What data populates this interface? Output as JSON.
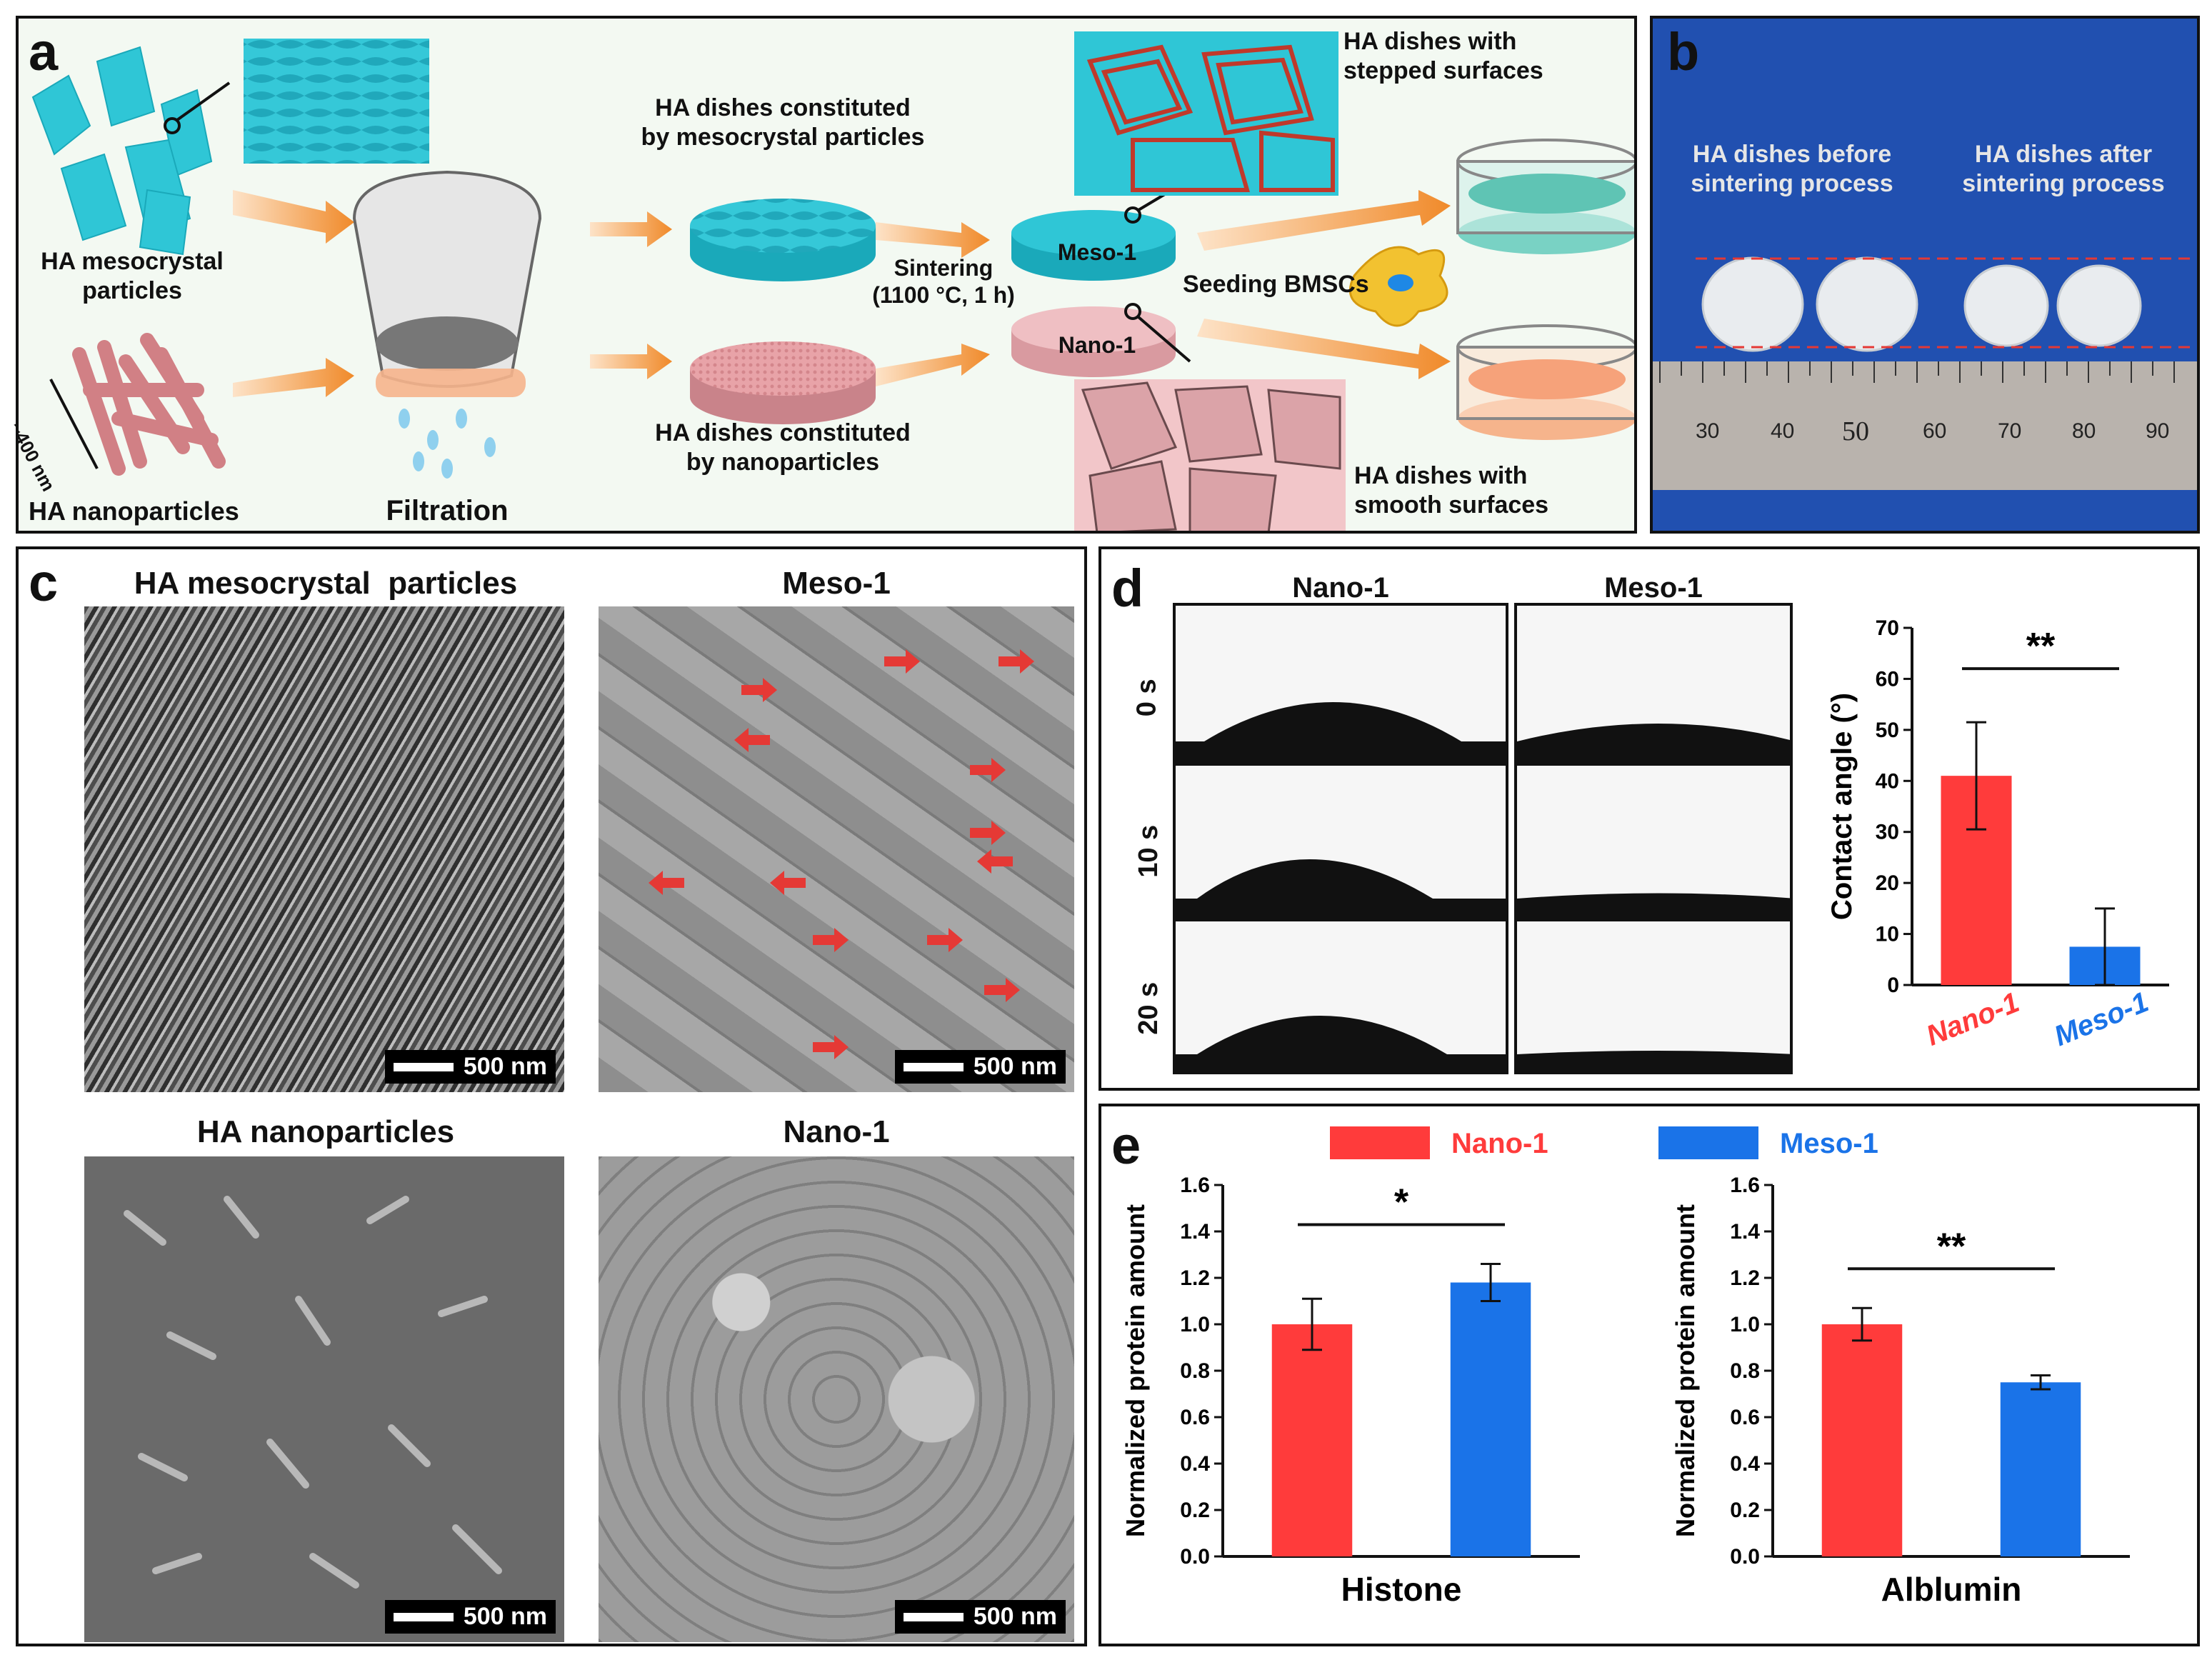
{
  "panel_a": {
    "label": "a",
    "mesocrystal_label": "HA mesocrystal\nparticles",
    "nanoparticle_label": "HA nanoparticles",
    "size_label": "~400 nm",
    "filtration": "Filtration",
    "dish_meso": "HA dishes constituted\nby mesocrystal particles",
    "dish_nano": "HA dishes constituted\nby nanoparticles",
    "sintering": "Sintering\n(1100 °C, 1 h)",
    "meso1": "Meso-1",
    "nano1": "Nano-1",
    "seeding": "Seeding BMSCs",
    "stepped": "HA dishes with\nstepped surfaces",
    "smooth": "HA dishes with\nsmooth surfaces",
    "colors": {
      "meso": "#2fc6d6",
      "nano": "#e8a3a8",
      "arrow": "#f08a2a"
    }
  },
  "panel_b": {
    "label": "b",
    "before": "HA dishes before\nsintering process",
    "after": "HA dishes after\nsintering process",
    "ruler_ticks": [
      "30",
      "40",
      "50",
      "60",
      "70",
      "80",
      "90"
    ]
  },
  "panel_c": {
    "label": "c",
    "titles": [
      "HA mesocrystal  particles",
      "Meso-1",
      "HA nanoparticles",
      "Nano-1"
    ],
    "scale": "500 nm"
  },
  "panel_d": {
    "label": "d",
    "col_nano": "Nano-1",
    "col_meso": "Meso-1",
    "times": [
      "0 s",
      "10 s",
      "20 s"
    ]
  },
  "panel_e": {
    "label": "e",
    "legend": [
      "Nano-1",
      "Meso-1"
    ]
  },
  "chart_data": [
    {
      "type": "bar",
      "panel": "d",
      "categories": [
        "Nano-1",
        "Meso-1"
      ],
      "values": [
        41,
        7.5
      ],
      "errors": [
        10.5,
        7.5
      ],
      "colors": [
        "#ff3b3b",
        "#1a73e8"
      ],
      "ylabel": "Contact  angle (°)",
      "ylim": [
        0,
        70
      ],
      "yticks": [
        0,
        10,
        20,
        30,
        40,
        50,
        60,
        70
      ],
      "significance": "**"
    },
    {
      "type": "bar",
      "panel": "e",
      "categories": [
        "Nano-1",
        "Meso-1"
      ],
      "values": [
        1.0,
        1.18
      ],
      "errors": [
        0.11,
        0.08
      ],
      "colors": [
        "#ff3b3b",
        "#1a73e8"
      ],
      "xlabel": "Histone",
      "ylabel": "Normalized protein amount",
      "ylim": [
        0,
        1.6
      ],
      "yticks": [
        "0.0",
        "0.2",
        "0.4",
        "0.6",
        "0.8",
        "1.0",
        "1.2",
        "1.4",
        "1.6"
      ],
      "significance": "*"
    },
    {
      "type": "bar",
      "panel": "e",
      "categories": [
        "Nano-1",
        "Meso-1"
      ],
      "values": [
        1.0,
        0.75
      ],
      "errors": [
        0.07,
        0.03
      ],
      "colors": [
        "#ff3b3b",
        "#1a73e8"
      ],
      "xlabel": "Alblumin",
      "ylabel": "Normalized protein amount",
      "ylim": [
        0,
        1.6
      ],
      "yticks": [
        "0.0",
        "0.2",
        "0.4",
        "0.6",
        "0.8",
        "1.0",
        "1.2",
        "1.4",
        "1.6"
      ],
      "significance": "**"
    }
  ]
}
